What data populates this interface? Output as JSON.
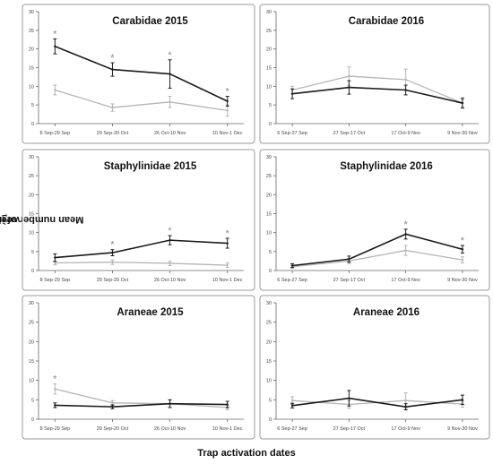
{
  "ylabel": "Mean number of individuals trap",
  "ylabel_sup": "-1",
  "ylabel_tail": " week",
  "ylabel_sup2": "-1",
  "xlabel": "Trap activation dates",
  "colors": {
    "dark": "#1a1a1a",
    "light": "#b5b5b5",
    "star": "#888888",
    "frame": "#9a9a9a"
  },
  "chart_data": [
    {
      "type": "line",
      "title": "Carabidae 2015",
      "categories": [
        "8 Sep-29 Sep",
        "29 Sep-20 Oct",
        "26 Oct-10 Nov",
        "10 Nov-1 Dec"
      ],
      "ylim": [
        0,
        30
      ],
      "yticks": [
        0,
        5,
        10,
        15,
        20,
        25,
        30
      ],
      "series": [
        {
          "values": [
            20.7,
            14.5,
            13.3,
            6.0
          ],
          "err": [
            2.0,
            1.8,
            3.8,
            1.3
          ]
        },
        {
          "values": [
            9.0,
            4.3,
            5.8,
            3.5
          ],
          "err": [
            1.3,
            1.0,
            1.5,
            1.5
          ]
        }
      ],
      "significant": [
        0,
        1,
        2,
        3
      ]
    },
    {
      "type": "line",
      "title": "Carabidae 2016",
      "categories": [
        "6 Sep-27 Sep",
        "27 Sep-17 Oct",
        "17 Oct-9 Nov",
        "9 Nov-30 Nov"
      ],
      "ylim": [
        0,
        30
      ],
      "yticks": [
        0,
        5,
        10,
        15,
        20,
        25,
        30
      ],
      "series": [
        {
          "values": [
            8.0,
            9.7,
            9.0,
            5.5
          ],
          "err": [
            1.3,
            1.8,
            1.3,
            1.2
          ]
        },
        {
          "values": [
            9.0,
            12.7,
            11.8,
            5.5
          ],
          "err": [
            1.0,
            2.5,
            2.8,
            1.5
          ]
        }
      ],
      "significant": []
    },
    {
      "type": "line",
      "title": "Staphylinidae 2015",
      "categories": [
        "8 Sep-29 Sep",
        "29 Sep-20 Oct",
        "26 Oct-10 Nov",
        "10 Nov-1 Dec"
      ],
      "ylim": [
        0,
        30
      ],
      "yticks": [
        0,
        5,
        10,
        15,
        20,
        25,
        30
      ],
      "series": [
        {
          "values": [
            3.4,
            4.7,
            8.0,
            7.2
          ],
          "err": [
            1.0,
            0.8,
            1.2,
            1.3
          ]
        },
        {
          "values": [
            2.0,
            2.2,
            1.9,
            1.4
          ],
          "err": [
            0.5,
            0.6,
            0.6,
            0.6
          ]
        }
      ],
      "significant": [
        1,
        2,
        3
      ]
    },
    {
      "type": "line",
      "title": "Staphylinidae 2016",
      "categories": [
        "6 Sep-27 Sep",
        "27 Sep-17 Oct",
        "17 Oct-9 Nov",
        "9 Nov-30 Nov"
      ],
      "ylim": [
        0,
        30
      ],
      "yticks": [
        0,
        5,
        10,
        15,
        20,
        25,
        30
      ],
      "series": [
        {
          "values": [
            1.3,
            3.0,
            9.6,
            5.6
          ],
          "err": [
            0.5,
            0.8,
            1.3,
            1.0
          ]
        },
        {
          "values": [
            1.0,
            2.5,
            5.3,
            2.8
          ],
          "err": [
            0.4,
            0.7,
            1.3,
            0.8
          ]
        }
      ],
      "significant": [
        2,
        3
      ]
    },
    {
      "type": "line",
      "title": "Araneae 2015",
      "categories": [
        "8 Sep-29 Sep",
        "29 Sep-20 Oct",
        "26 Oct-10 Nov",
        "10 Nov-1 Dec"
      ],
      "ylim": [
        0,
        30
      ],
      "yticks": [
        0,
        5,
        10,
        15,
        20,
        25,
        30
      ],
      "series": [
        {
          "values": [
            3.6,
            3.2,
            4.0,
            3.8
          ],
          "err": [
            0.6,
            0.5,
            1.0,
            0.8
          ]
        },
        {
          "values": [
            7.8,
            4.2,
            4.0,
            3.0
          ],
          "err": [
            1.3,
            0.6,
            1.0,
            0.6
          ]
        }
      ],
      "significant": [
        0
      ]
    },
    {
      "type": "line",
      "title": "Araneae 2016",
      "categories": [
        "6 Sep-27 Sep",
        "27 Sep-17 Oct",
        "17 Oct-9 Nov",
        "9 Nov-30 Nov"
      ],
      "ylim": [
        0,
        30
      ],
      "yticks": [
        0,
        5,
        10,
        15,
        20,
        25,
        30
      ],
      "series": [
        {
          "values": [
            3.5,
            5.4,
            3.2,
            5.0
          ],
          "err": [
            0.6,
            2.0,
            0.8,
            1.2
          ]
        },
        {
          "values": [
            4.8,
            3.8,
            4.8,
            3.9
          ],
          "err": [
            1.0,
            1.0,
            2.0,
            0.8
          ]
        }
      ],
      "significant": []
    }
  ]
}
